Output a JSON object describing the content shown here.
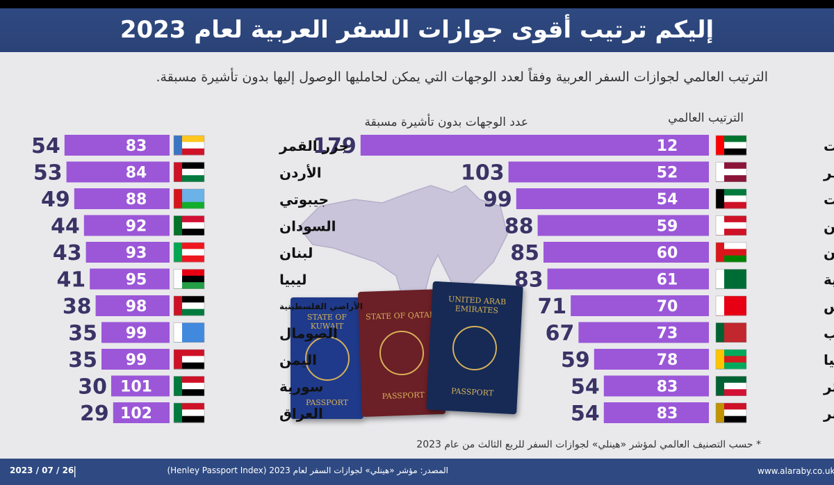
{
  "header": {
    "title": "إليكم ترتيب أقوى جوازات السفر العربية لعام 2023",
    "subtitle": "الترتيب العالمي لجوازات السفر العربية وفقاً لعدد الوجهات التي يمكن لحامليها الوصول إليها بدون تأشيرة مسبقة."
  },
  "columns": {
    "rank_label": "الترتيب العالمي",
    "destinations_label": "عدد الوجهات بدون تأشيرة مسبقة"
  },
  "passports": {
    "kuwait": "STATE OF KUWAIT",
    "qatar": "STATE OF QATAR",
    "uae": "UNITED ARAB EMIRATES",
    "word": "PASSPORT"
  },
  "chart_data": [
    {
      "type": "bar",
      "categories": [
        "الإمارات",
        "قطر",
        "الكويت",
        "البحرين",
        "عُمان",
        "السعودية",
        "تونس",
        "المغرب",
        "موريتانيا",
        "الجزائر",
        "مصر"
      ],
      "rank": [
        12,
        52,
        54,
        59,
        60,
        61,
        70,
        73,
        78,
        83,
        83
      ],
      "values": [
        179,
        103,
        99,
        88,
        85,
        83,
        71,
        67,
        59,
        54,
        54
      ]
    },
    {
      "type": "bar",
      "categories": [
        "جزر القمر",
        "الأردن",
        "جيبوتي",
        "السودان",
        "لبنان",
        "ليبيا",
        "الأراضي الفلسطينية",
        "الصومال",
        "اليمن",
        "سورية",
        "العراق"
      ],
      "rank": [
        83,
        84,
        88,
        92,
        93,
        95,
        98,
        99,
        99,
        101,
        102
      ],
      "values": [
        54,
        53,
        49,
        44,
        43,
        41,
        38,
        35,
        35,
        30,
        29
      ]
    }
  ],
  "footnote": "* حسب التصنيف العالمي لمؤشر «هينلي» لجوازات السفر للربع الثالث من عام 2023",
  "footer": {
    "url": "www.alaraby.co.uk",
    "source": "المصدر: مؤشر «هينلي» لجوازات السفر لعام 2023 (Henley Passport Index)",
    "separator": "|",
    "date": "2023 / 07 / 26"
  },
  "colors": {
    "bar": "#9b57d8",
    "value": "#3a3366",
    "header": "#2f4a82"
  }
}
